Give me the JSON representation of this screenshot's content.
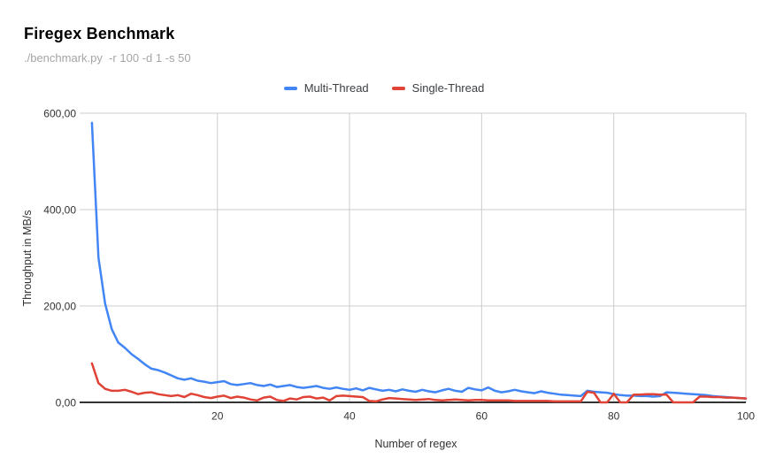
{
  "chart_data": {
    "type": "line",
    "title": "Firegex Benchmark",
    "subtitle": "./benchmark.py  -r 100 -d 1 -s 50",
    "xlabel": "Number of regex",
    "ylabel": "Throughput in MB/s",
    "xlim": [
      0,
      100
    ],
    "ylim": [
      0,
      600
    ],
    "x_tick_labels": [
      "20",
      "40",
      "60",
      "80",
      "100"
    ],
    "x_ticks": [
      20,
      40,
      60,
      80,
      100
    ],
    "y_tick_labels": [
      "0,00",
      "200,00",
      "400,00",
      "600,00"
    ],
    "y_ticks": [
      0,
      200,
      400,
      600
    ],
    "grid": true,
    "legend_position": "top-center",
    "grid_color": "#cccccc",
    "baseline_color": "#333333",
    "x": [
      1,
      2,
      3,
      4,
      5,
      6,
      7,
      8,
      9,
      10,
      11,
      12,
      13,
      14,
      15,
      16,
      17,
      18,
      19,
      20,
      21,
      22,
      23,
      24,
      25,
      26,
      27,
      28,
      29,
      30,
      31,
      32,
      33,
      34,
      35,
      36,
      37,
      38,
      39,
      40,
      41,
      42,
      43,
      44,
      45,
      46,
      47,
      48,
      49,
      50,
      51,
      52,
      53,
      54,
      55,
      56,
      57,
      58,
      59,
      60,
      61,
      62,
      63,
      64,
      65,
      66,
      67,
      68,
      69,
      70,
      71,
      72,
      73,
      74,
      75,
      76,
      77,
      78,
      79,
      80,
      81,
      82,
      83,
      84,
      85,
      86,
      87,
      88,
      89,
      90,
      91,
      92,
      93,
      94,
      95,
      96,
      97,
      98,
      99,
      100
    ],
    "series": [
      {
        "name": "Multi-Thread",
        "color": "#4285f4",
        "values": [
          580,
          300,
          205,
          152,
          124,
          113,
          100,
          90,
          79,
          70,
          67,
          62,
          56,
          50,
          47,
          50,
          45,
          43,
          40,
          42,
          44,
          38,
          36,
          38,
          40,
          36,
          34,
          37,
          32,
          34,
          36,
          32,
          30,
          32,
          34,
          30,
          28,
          31,
          28,
          26,
          29,
          25,
          30,
          27,
          24,
          26,
          23,
          27,
          24,
          22,
          26,
          23,
          21,
          25,
          28,
          24,
          22,
          30,
          27,
          25,
          31,
          24,
          21,
          23,
          26,
          23,
          21,
          19,
          23,
          20,
          18,
          16,
          15,
          14,
          13,
          24,
          22,
          21,
          20,
          17,
          15,
          14,
          14,
          13,
          13,
          12,
          13,
          21,
          20,
          19,
          18,
          17,
          16,
          15,
          13,
          12,
          11,
          10,
          9,
          8
        ]
      },
      {
        "name": "Single-Thread",
        "color": "#e04336",
        "values": [
          81,
          40,
          28,
          24,
          24,
          26,
          22,
          17,
          20,
          21,
          17,
          15,
          13,
          15,
          11,
          18,
          15,
          11,
          9,
          12,
          14,
          9,
          12,
          10,
          6,
          4,
          10,
          12,
          5,
          3,
          8,
          6,
          11,
          12,
          8,
          10,
          4,
          13,
          14,
          13,
          12,
          11,
          3,
          2,
          6,
          9,
          8,
          7,
          6,
          5,
          6,
          7,
          5,
          4,
          5,
          6,
          5,
          4,
          5,
          5,
          4,
          4,
          4,
          4,
          3,
          3,
          3,
          3,
          3,
          3,
          2,
          2,
          2,
          2,
          2,
          22,
          20,
          0,
          0,
          18,
          0,
          0,
          16,
          16,
          17,
          17,
          16,
          16,
          0,
          0,
          0,
          0,
          12,
          12,
          11,
          11,
          10,
          10,
          9,
          8
        ]
      }
    ]
  }
}
